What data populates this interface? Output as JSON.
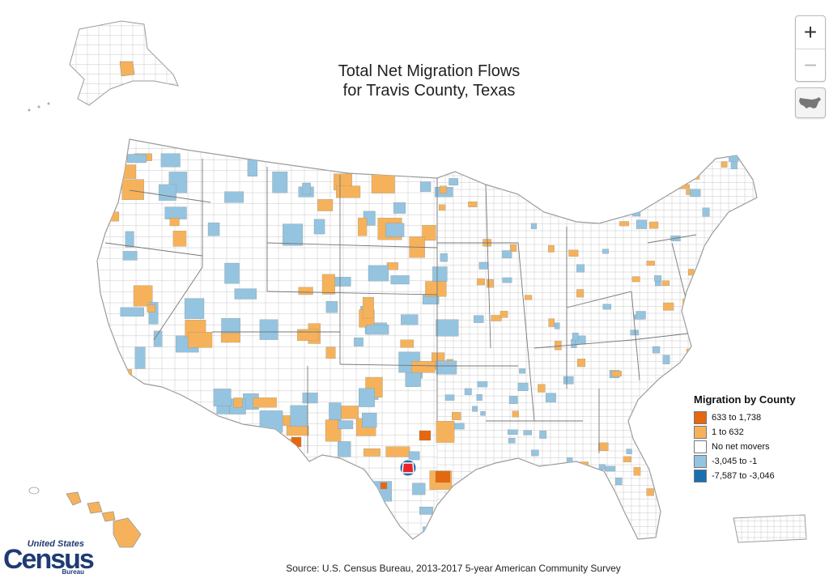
{
  "title": {
    "line1": "Total Net Migration Flows",
    "line2": "for Travis County, Texas"
  },
  "controls": {
    "zoom_in": "+",
    "zoom_out": "−",
    "home_icon": "us-map-icon"
  },
  "legend": {
    "title": "Migration by County",
    "items": [
      {
        "label": "633 to 1,738",
        "color": "#e4680f"
      },
      {
        "label": "1 to 632",
        "color": "#f6b25a"
      },
      {
        "label": "No net movers",
        "color": "#ffffff"
      },
      {
        "label": "-3,045 to -1",
        "color": "#94c4e0"
      },
      {
        "label": "-7,587 to -3,046",
        "color": "#1a6fb0"
      }
    ]
  },
  "highlight": {
    "county": "Travis County, Texas",
    "color": "#e8232a"
  },
  "source": "Source: U.S. Census Bureau, 2013-2017 5-year American Community Survey",
  "logo": {
    "top": "United States",
    "main": "Census",
    "bottom": "Bureau"
  }
}
